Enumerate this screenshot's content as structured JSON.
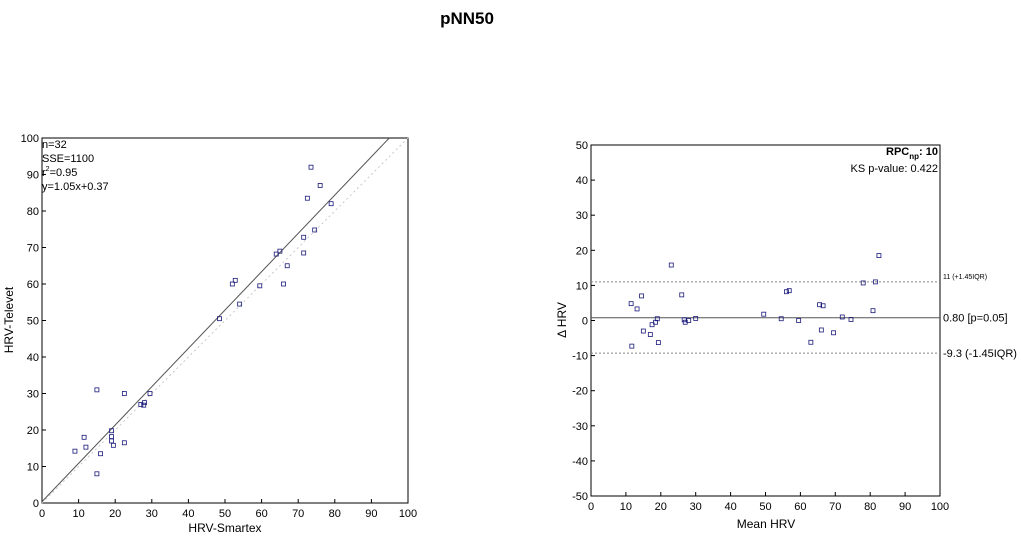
{
  "figure": {
    "title": "pNN50"
  },
  "chart_data": [
    {
      "type": "scatter",
      "xlabel": "HRV-Smartex",
      "ylabel": "HRV-Televet",
      "xlim": [
        0,
        100
      ],
      "ylim": [
        0,
        100
      ],
      "xticks": [
        0,
        10,
        20,
        30,
        40,
        50,
        60,
        70,
        80,
        90,
        100
      ],
      "yticks": [
        0,
        10,
        20,
        30,
        40,
        50,
        60,
        70,
        80,
        90,
        100
      ],
      "grid": false,
      "stats_lines": [
        "n=32",
        "SSE=1100",
        "r",
        "=0.95",
        "y=1.05x+0.37"
      ],
      "r_sup": "2",
      "identity_line": {
        "slope": 1,
        "intercept": 0,
        "style": "dotted",
        "color": "#c8c8c8"
      },
      "fit_line": {
        "slope": 1.05,
        "intercept": 0.37,
        "style": "solid",
        "color": "#555555"
      },
      "marker_color": "#1a1a7a",
      "points": [
        [
          9,
          14.2
        ],
        [
          11.5,
          18
        ],
        [
          12,
          15.3
        ],
        [
          15,
          31
        ],
        [
          15,
          8
        ],
        [
          16,
          13.5
        ],
        [
          19,
          19.8
        ],
        [
          19,
          18.2
        ],
        [
          19,
          17
        ],
        [
          19.5,
          15.8
        ],
        [
          22.5,
          30
        ],
        [
          22.5,
          16.5
        ],
        [
          27,
          27
        ],
        [
          27.8,
          26.8
        ],
        [
          28,
          27.5
        ],
        [
          29.5,
          30
        ],
        [
          48.5,
          50.5
        ],
        [
          52,
          60
        ],
        [
          52.8,
          61
        ],
        [
          54,
          54.5
        ],
        [
          59.5,
          59.5
        ],
        [
          64,
          68.2
        ],
        [
          65,
          69
        ],
        [
          66,
          60
        ],
        [
          67,
          65
        ],
        [
          71.5,
          68.5
        ],
        [
          71.5,
          72.8
        ],
        [
          72.5,
          83.5
        ],
        [
          73.5,
          92
        ],
        [
          74.5,
          74.8
        ],
        [
          76,
          87
        ],
        [
          79,
          82
        ]
      ]
    },
    {
      "type": "scatter",
      "xlabel": "Mean HRV",
      "ylabel": "Δ HRV",
      "xlim": [
        0,
        100
      ],
      "ylim": [
        -50,
        50
      ],
      "xticks": [
        0,
        10,
        20,
        30,
        40,
        50,
        60,
        70,
        80,
        90,
        100
      ],
      "yticks": [
        -50,
        -40,
        -30,
        -20,
        -10,
        0,
        10,
        20,
        30,
        40,
        50
      ],
      "grid": false,
      "rpc_label": "RPC",
      "rpc_sub": "np",
      "rpc_value": ": 10",
      "ks_label": "KS p-value: 0.422",
      "reference_lines": [
        {
          "y": 11,
          "label": "11 (+1.45IQR)",
          "style": "dotted",
          "size": "small"
        },
        {
          "y": 0.8,
          "label": "0.80 [p=0.05]",
          "style": "solid",
          "size": "normal"
        },
        {
          "y": -9.3,
          "label": "-9.3 (-1.45IQR)",
          "style": "dotted",
          "size": "normal"
        }
      ],
      "marker_color": "#1a1a7a",
      "points": [
        [
          11.5,
          4.8
        ],
        [
          11.7,
          -7.3
        ],
        [
          13.2,
          3.3
        ],
        [
          14.5,
          7.0
        ],
        [
          15,
          -3.0
        ],
        [
          17,
          -4.0
        ],
        [
          17.5,
          -1.2
        ],
        [
          18.5,
          -0.5
        ],
        [
          19,
          0.5
        ],
        [
          19.3,
          -6.3
        ],
        [
          23,
          15.8
        ],
        [
          26,
          7.3
        ],
        [
          26.7,
          0.2
        ],
        [
          27,
          -0.5
        ],
        [
          28,
          0
        ],
        [
          30,
          0.6
        ],
        [
          49.5,
          1.8
        ],
        [
          54.5,
          0.5
        ],
        [
          56,
          8.2
        ],
        [
          56.8,
          8.5
        ],
        [
          59.5,
          0
        ],
        [
          63,
          -6.2
        ],
        [
          65.5,
          4.5
        ],
        [
          66,
          -2.7
        ],
        [
          66.5,
          4.2
        ],
        [
          69.5,
          -3.5
        ],
        [
          72,
          1.0
        ],
        [
          74.5,
          0.3
        ],
        [
          78,
          10.7
        ],
        [
          80.8,
          2.8
        ],
        [
          81.5,
          11.0
        ],
        [
          82.5,
          18.5
        ]
      ]
    }
  ]
}
